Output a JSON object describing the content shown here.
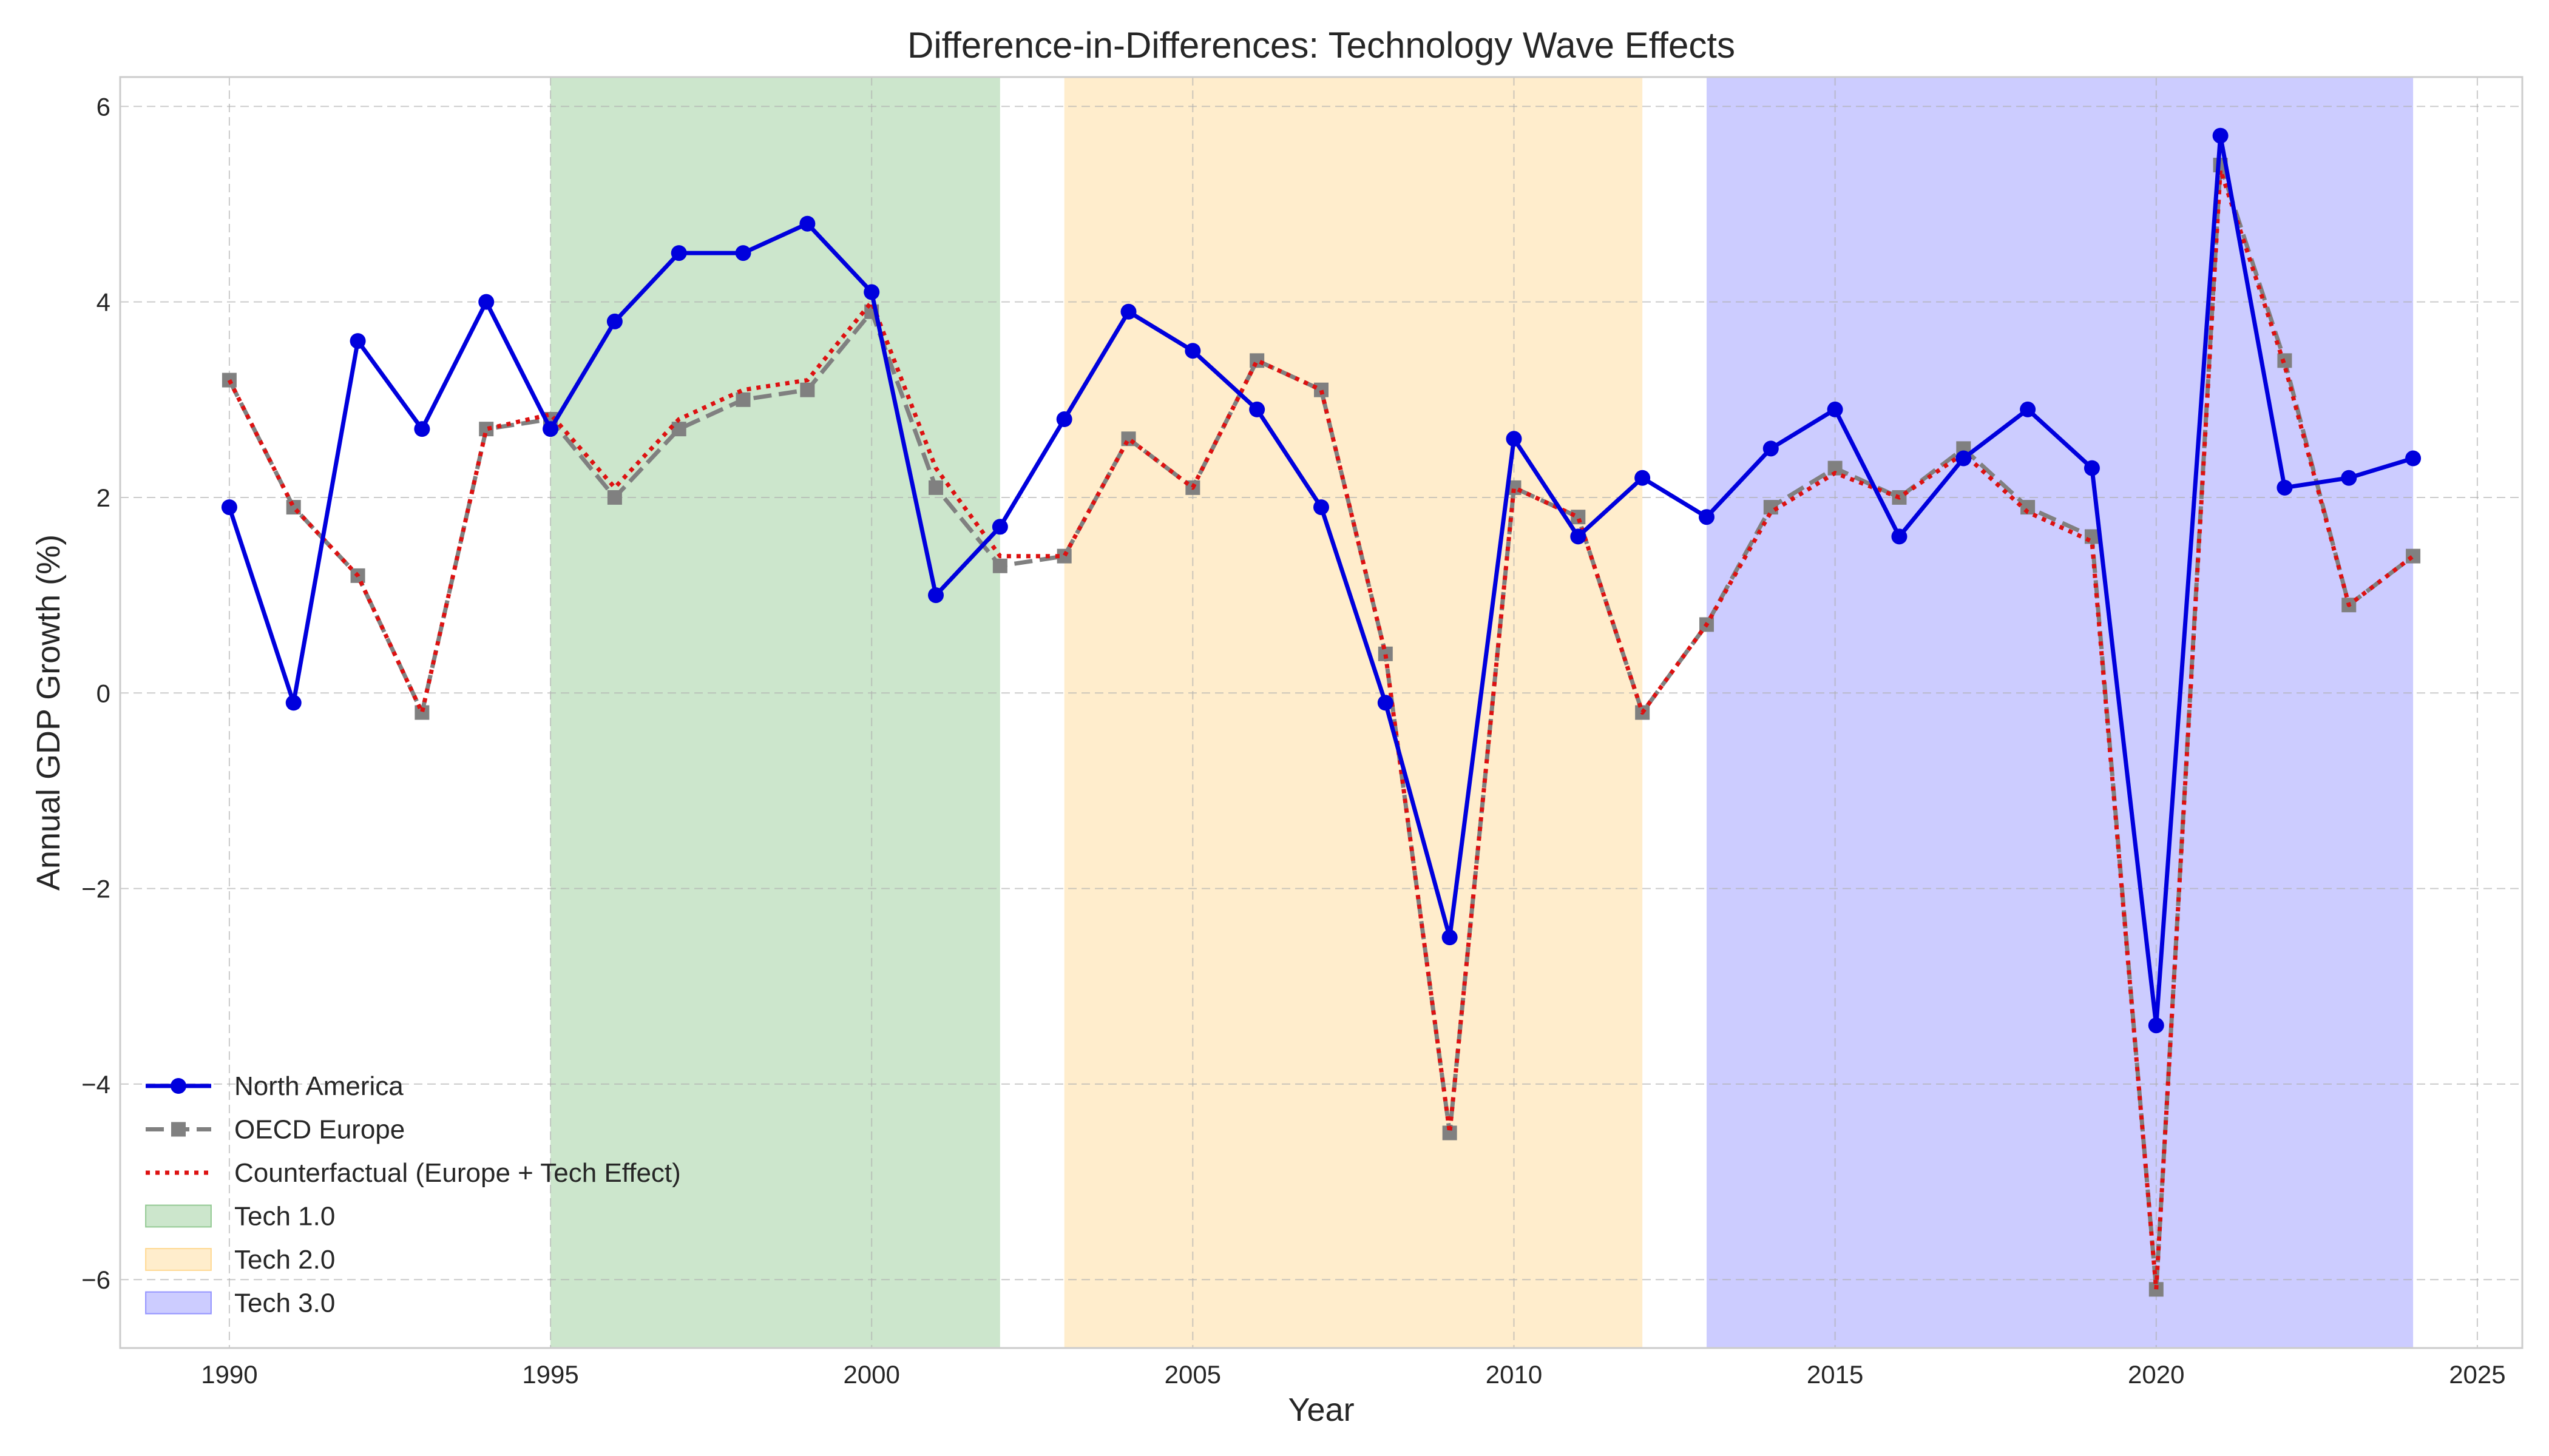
{
  "chart_data": {
    "type": "line",
    "title": "Difference-in-Differences: Technology Wave Effects",
    "xlabel": "Year",
    "ylabel": "Annual GDP Growth (%)",
    "xlim": [
      1988.3,
      2025.7
    ],
    "ylim": [
      -6.7,
      6.3
    ],
    "xticks": [
      1990,
      1995,
      2000,
      2005,
      2010,
      2015,
      2020,
      2025
    ],
    "yticks": [
      -6,
      -4,
      -2,
      0,
      2,
      4,
      6
    ],
    "ytick_labels": [
      "−6",
      "−4",
      "−2",
      "0",
      "2",
      "4",
      "6"
    ],
    "grid": true,
    "legend_position": "lower-left",
    "x": [
      1990,
      1991,
      1992,
      1993,
      1994,
      1995,
      1996,
      1997,
      1998,
      1999,
      2000,
      2001,
      2002,
      2003,
      2004,
      2005,
      2006,
      2007,
      2008,
      2009,
      2010,
      2011,
      2012,
      2013,
      2014,
      2015,
      2016,
      2017,
      2018,
      2019,
      2020,
      2021,
      2022,
      2023,
      2024
    ],
    "series": [
      {
        "name": "North America",
        "color": "#0000dd",
        "style": "solid-circle",
        "values": [
          1.9,
          -0.1,
          3.6,
          2.7,
          4.0,
          2.7,
          3.8,
          4.5,
          4.5,
          4.8,
          4.1,
          1.0,
          1.7,
          2.8,
          3.9,
          3.5,
          2.9,
          1.9,
          -0.1,
          -2.5,
          2.6,
          1.6,
          2.2,
          1.8,
          2.5,
          2.9,
          1.6,
          2.4,
          2.9,
          2.3,
          -3.4,
          5.7,
          2.1,
          2.2,
          2.4
        ]
      },
      {
        "name": "OECD Europe",
        "color": "#808080",
        "style": "dashed-square",
        "values": [
          3.2,
          1.9,
          1.2,
          -0.2,
          2.7,
          2.8,
          2.0,
          2.7,
          3.0,
          3.1,
          3.9,
          2.1,
          1.3,
          1.4,
          2.6,
          2.1,
          3.4,
          3.1,
          0.4,
          -4.5,
          2.1,
          1.8,
          -0.2,
          0.7,
          1.9,
          2.3,
          2.0,
          2.5,
          1.9,
          1.6,
          -6.1,
          5.4,
          3.4,
          0.9,
          1.4
        ]
      },
      {
        "name": "Counterfactual (Europe + Tech Effect)",
        "color": "#dd1111",
        "style": "dotted",
        "values": [
          3.2,
          1.9,
          1.2,
          -0.2,
          2.7,
          2.85,
          2.1,
          2.8,
          3.1,
          3.2,
          4.0,
          2.3,
          1.4,
          1.4,
          2.6,
          2.1,
          3.4,
          3.1,
          0.4,
          -4.5,
          2.1,
          1.8,
          -0.2,
          0.7,
          1.85,
          2.25,
          2.0,
          2.45,
          1.85,
          1.55,
          -6.1,
          5.35,
          3.35,
          0.9,
          1.4
        ]
      }
    ],
    "shaded_periods": [
      {
        "name": "Tech 1.0",
        "start": 1995,
        "end": 2002,
        "color": "#008000",
        "alpha": 0.2
      },
      {
        "name": "Tech 2.0",
        "start": 2003,
        "end": 2012,
        "color": "#ffa500",
        "alpha": 0.2
      },
      {
        "name": "Tech 3.0",
        "start": 2013,
        "end": 2024,
        "color": "#0000ff",
        "alpha": 0.2
      }
    ]
  }
}
